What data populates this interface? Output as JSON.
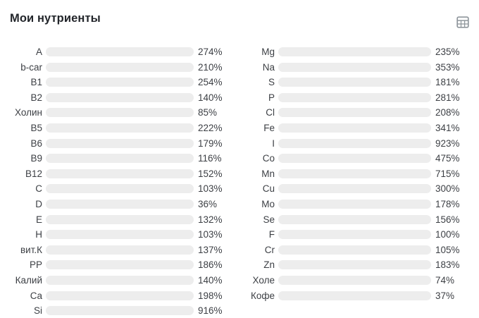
{
  "header": {
    "title": "Мои нутриенты",
    "table_view_icon": "table-icon"
  },
  "colors": {
    "yellow": "#EDD40A",
    "blue": "#3E9BD5",
    "purple": "#9B59B6",
    "track": "#EDEDED",
    "title_text": "#23262B",
    "body_text": "#3C3F44",
    "icon": "#8F969C"
  },
  "chart_data": {
    "type": "bar",
    "orientation": "horizontal",
    "title": "Мои нутриенты",
    "unit": "%",
    "fill_cap_percent": 100,
    "legend": "none",
    "groups": [
      {
        "name": "left",
        "items": [
          {
            "label": "A",
            "value": 274,
            "color": "yellow"
          },
          {
            "label": "b-car",
            "value": 210,
            "color": "yellow"
          },
          {
            "label": "B1",
            "value": 254,
            "color": "yellow"
          },
          {
            "label": "B2",
            "value": 140,
            "color": "yellow"
          },
          {
            "label": "Холин",
            "value": 85,
            "color": "yellow"
          },
          {
            "label": "B5",
            "value": 222,
            "color": "yellow"
          },
          {
            "label": "B6",
            "value": 179,
            "color": "yellow"
          },
          {
            "label": "B9",
            "value": 116,
            "color": "yellow"
          },
          {
            "label": "B12",
            "value": 152,
            "color": "yellow"
          },
          {
            "label": "C",
            "value": 103,
            "color": "yellow"
          },
          {
            "label": "D",
            "value": 36,
            "color": "yellow"
          },
          {
            "label": "E",
            "value": 132,
            "color": "yellow"
          },
          {
            "label": "H",
            "value": 103,
            "color": "yellow"
          },
          {
            "label": "вит.К",
            "value": 137,
            "color": "yellow"
          },
          {
            "label": "PP",
            "value": 186,
            "color": "yellow"
          },
          {
            "label": "Калий",
            "value": 140,
            "color": "blue"
          },
          {
            "label": "Ca",
            "value": 198,
            "color": "blue"
          },
          {
            "label": "Si",
            "value": 916,
            "color": "purple"
          }
        ]
      },
      {
        "name": "right",
        "items": [
          {
            "label": "Mg",
            "value": 235,
            "color": "blue"
          },
          {
            "label": "Na",
            "value": 353,
            "color": "blue"
          },
          {
            "label": "S",
            "value": 181,
            "color": "blue"
          },
          {
            "label": "P",
            "value": 281,
            "color": "blue"
          },
          {
            "label": "Cl",
            "value": 208,
            "color": "blue"
          },
          {
            "label": "Fe",
            "value": 341,
            "color": "purple"
          },
          {
            "label": "I",
            "value": 923,
            "color": "purple"
          },
          {
            "label": "Co",
            "value": 475,
            "color": "purple"
          },
          {
            "label": "Mn",
            "value": 715,
            "color": "purple"
          },
          {
            "label": "Cu",
            "value": 300,
            "color": "purple"
          },
          {
            "label": "Mo",
            "value": 178,
            "color": "purple"
          },
          {
            "label": "Se",
            "value": 156,
            "color": "purple"
          },
          {
            "label": "F",
            "value": 100,
            "color": "purple"
          },
          {
            "label": "Cr",
            "value": 105,
            "color": "purple"
          },
          {
            "label": "Zn",
            "value": 183,
            "color": "purple"
          },
          {
            "label": "Холе",
            "value": 74,
            "color": "yellow"
          },
          {
            "label": "Кофе",
            "value": 37,
            "color": "yellow"
          }
        ]
      }
    ]
  }
}
